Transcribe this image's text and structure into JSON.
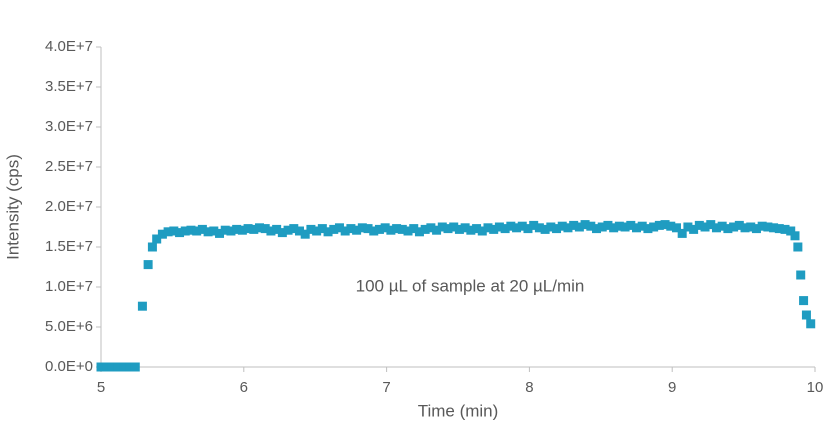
{
  "chart_data": {
    "type": "scatter",
    "xlabel": "Time (min)",
    "ylabel": "Intensity (cps)",
    "annotation": "100 µL of sample at 20 µL/min",
    "color": "#1f9cc1",
    "xlim": [
      5,
      10
    ],
    "xticks": [
      5,
      6,
      7,
      8,
      9,
      10
    ],
    "ylim": [
      0,
      40000000
    ],
    "yticks": [
      {
        "value": 0,
        "label": "0.0E+0"
      },
      {
        "value": 5000000,
        "label": "5.0E+6"
      },
      {
        "value": 10000000,
        "label": "1.0E+7"
      },
      {
        "value": 15000000,
        "label": "1.5E+7"
      },
      {
        "value": 20000000,
        "label": "2.0E+7"
      },
      {
        "value": 25000000,
        "label": "2.5E+7"
      },
      {
        "value": 30000000,
        "label": "3.0E+7"
      },
      {
        "value": 35000000,
        "label": "3.5E+7"
      },
      {
        "value": 40000000,
        "label": "4.0E+7"
      }
    ],
    "x": [
      5.0,
      5.04,
      5.08,
      5.12,
      5.16,
      5.2,
      5.24,
      5.29,
      5.33,
      5.36,
      5.39,
      5.43,
      5.47,
      5.51,
      5.55,
      5.59,
      5.63,
      5.67,
      5.71,
      5.75,
      5.79,
      5.83,
      5.87,
      5.91,
      5.95,
      5.99,
      6.03,
      6.07,
      6.11,
      6.15,
      6.19,
      6.23,
      6.27,
      6.31,
      6.35,
      6.39,
      6.43,
      6.47,
      6.51,
      6.55,
      6.59,
      6.63,
      6.67,
      6.71,
      6.75,
      6.79,
      6.83,
      6.87,
      6.91,
      6.95,
      6.99,
      7.03,
      7.07,
      7.11,
      7.15,
      7.19,
      7.23,
      7.27,
      7.31,
      7.35,
      7.39,
      7.43,
      7.47,
      7.51,
      7.55,
      7.59,
      7.63,
      7.67,
      7.71,
      7.75,
      7.79,
      7.83,
      7.87,
      7.91,
      7.95,
      7.99,
      8.03,
      8.07,
      8.11,
      8.15,
      8.19,
      8.23,
      8.27,
      8.31,
      8.35,
      8.39,
      8.43,
      8.47,
      8.51,
      8.55,
      8.59,
      8.63,
      8.67,
      8.71,
      8.75,
      8.79,
      8.83,
      8.87,
      8.91,
      8.95,
      8.99,
      9.03,
      9.07,
      9.11,
      9.15,
      9.19,
      9.23,
      9.27,
      9.31,
      9.35,
      9.39,
      9.43,
      9.47,
      9.51,
      9.55,
      9.59,
      9.63,
      9.67,
      9.71,
      9.75,
      9.79,
      9.83,
      9.86,
      9.88,
      9.9,
      9.92,
      9.94,
      9.97
    ],
    "values": [
      0,
      0,
      0,
      0,
      0,
      0,
      0,
      7600000.0,
      12800000.0,
      15000000.0,
      16000000.0,
      16600000.0,
      16900000.0,
      17000000.0,
      16800000.0,
      17000000.0,
      17100000.0,
      17000000.0,
      17200000.0,
      16900000.0,
      17000000.0,
      16700000.0,
      17100000.0,
      17000000.0,
      17200000.0,
      17100000.0,
      17300000.0,
      17200000.0,
      17400000.0,
      17300000.0,
      17000000.0,
      17200000.0,
      16800000.0,
      17100000.0,
      17300000.0,
      17000000.0,
      16600000.0,
      17200000.0,
      17000000.0,
      17300000.0,
      16900000.0,
      17200000.0,
      17400000.0,
      17000000.0,
      17300000.0,
      17100000.0,
      17400000.0,
      17300000.0,
      17000000.0,
      17200000.0,
      17400000.0,
      17100000.0,
      17300000.0,
      17200000.0,
      17000000.0,
      17300000.0,
      16900000.0,
      17200000.0,
      17400000.0,
      17100000.0,
      17500000.0,
      17300000.0,
      17500000.0,
      17200000.0,
      17400000.0,
      17100000.0,
      17300000.0,
      17000000.0,
      17400000.0,
      17200000.0,
      17500000.0,
      17300000.0,
      17600000.0,
      17400000.0,
      17600000.0,
      17300000.0,
      17700000.0,
      17400000.0,
      17200000.0,
      17500000.0,
      17300000.0,
      17600000.0,
      17400000.0,
      17700000.0,
      17500000.0,
      17800000.0,
      17600000.0,
      17300000.0,
      17500000.0,
      17700000.0,
      17400000.0,
      17600000.0,
      17500000.0,
      17700000.0,
      17400000.0,
      17600000.0,
      17300000.0,
      17500000.0,
      17700000.0,
      17800000.0,
      17600000.0,
      17400000.0,
      16700000.0,
      17500000.0,
      17200000.0,
      17700000.0,
      17500000.0,
      17800000.0,
      17400000.0,
      17600000.0,
      17300000.0,
      17500000.0,
      17700000.0,
      17400000.0,
      17500000.0,
      17300000.0,
      17600000.0,
      17500000.0,
      17400000.0,
      17300000.0,
      17200000.0,
      17000000.0,
      16400000.0,
      15000000.0,
      11500000.0,
      8300000.0,
      6500000.0,
      5400000.0
    ]
  }
}
